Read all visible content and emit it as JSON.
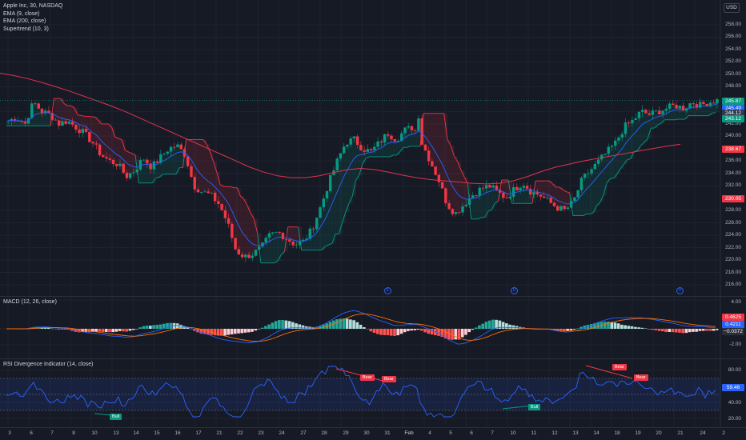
{
  "legend": {
    "title": "Apple Inc, 30, NASDAQ",
    "ema9": "EMA (9, close)",
    "ema200": "EMA (200, close)",
    "supertrend": "Supertrend (10, 3)"
  },
  "currency_button": "USD",
  "price_axis": [
    "258.00",
    "256.00",
    "254.00",
    "252.00",
    "250.00",
    "248.00",
    "244.00",
    "242.00",
    "240.00",
    "236.00",
    "234.00",
    "232.00",
    "228.00",
    "226.00",
    "224.00",
    "222.00",
    "220.00",
    "218.00",
    "216.00"
  ],
  "price_boxes": [
    {
      "label": "245.87",
      "color": "#089981"
    },
    {
      "label": "245.49",
      "color": "#2962ff"
    },
    {
      "label": "244.12",
      "color": "#2f3a4f"
    },
    {
      "label": "243.12",
      "color": "#089981"
    },
    {
      "label": "238.67",
      "color": "#f23645"
    },
    {
      "label": "230.05",
      "color": "#f23645"
    }
  ],
  "event_markers": [
    "E",
    "D",
    "D"
  ],
  "macd": {
    "legend": "MACD (12, 26, close)",
    "axis": [
      "4.00",
      "-2.00"
    ],
    "boxes": [
      {
        "label": "0.4625",
        "color": "#f23645"
      },
      {
        "label": "0.4211",
        "color": "#2962ff"
      },
      {
        "label": "−0.0372",
        "color": "#2a2e39"
      }
    ]
  },
  "rsi": {
    "legend": "RSI Divergence Indicator (14, close)",
    "axis": [
      "80.00",
      "40.00",
      "20.00"
    ],
    "box": {
      "label": "59.46",
      "color": "#2962ff"
    },
    "signals": [
      "Bull",
      "Bear",
      "Bear",
      "Bull",
      "Bear",
      "Bear"
    ]
  },
  "time_axis": [
    "3",
    "6",
    "7",
    "8",
    "10",
    "13",
    "14",
    "15",
    "16",
    "17",
    "21",
    "22",
    "23",
    "24",
    "27",
    "28",
    "29",
    "30",
    "31",
    "Feb",
    "4",
    "5",
    "6",
    "7",
    "10",
    "11",
    "12",
    "13",
    "14",
    "18",
    "19",
    "20",
    "21",
    "24",
    "2"
  ],
  "chart_data": {
    "type": "candlestick",
    "instrument": "Apple Inc",
    "interval": "30",
    "exchange": "NASDAQ",
    "currency": "USD",
    "ylim": [
      215,
      260
    ],
    "close_path": [
      242.5,
      243.0,
      242.0,
      245.5,
      244.0,
      243.5,
      242.0,
      242.5,
      241.5,
      240.5,
      239.0,
      237.0,
      236.0,
      235.5,
      233.5,
      234.5,
      236.5,
      235.0,
      236.5,
      238.0,
      238.5,
      237.0,
      232.0,
      231.0,
      230.5,
      229.0,
      226.0,
      221.5,
      220.5,
      221.0,
      222.0,
      224.0,
      224.5,
      223.5,
      222.5,
      223.0,
      225.0,
      228.5,
      232.5,
      236.0,
      239.0,
      239.5,
      238.0,
      237.5,
      239.0,
      240.5,
      239.5,
      241.0,
      241.5,
      239.0,
      236.0,
      233.0,
      229.0,
      227.5,
      229.0,
      230.5,
      231.5,
      232.0,
      231.0,
      230.0,
      231.5,
      232.5,
      231.0,
      230.5,
      229.5,
      228.5,
      228.0,
      229.5,
      233.0,
      234.5,
      236.0,
      237.5,
      239.0,
      241.5,
      242.5,
      244.0,
      243.5,
      244.0,
      244.5,
      245.0,
      244.5,
      245.5,
      245.0,
      245.5,
      245.8
    ],
    "ema200_path": [
      250.2,
      249.8,
      249.3,
      248.7,
      248.0,
      247.3,
      246.5,
      245.7,
      244.9,
      244.0,
      243.0,
      242.0,
      241.0,
      240.0,
      239.0,
      238.0,
      237.0,
      236.0,
      235.0,
      234.2,
      233.6,
      233.3,
      233.3,
      233.6,
      234.1,
      234.6,
      234.8,
      234.6,
      234.2,
      233.7,
      233.3,
      233.0,
      232.8,
      232.6,
      232.4,
      232.3,
      232.4,
      232.8,
      233.5,
      234.3,
      235.0,
      235.5,
      236.0,
      236.4,
      236.8,
      237.2,
      237.6,
      238.0,
      238.4,
      238.7
    ],
    "supertrend_last": 243.12,
    "macd_last": 0.4625,
    "macd_signal_last": 0.4211,
    "macd_hist_last": -0.0372,
    "rsi_last": 59.46,
    "rsi_levels": [
      70,
      50,
      30
    ]
  }
}
